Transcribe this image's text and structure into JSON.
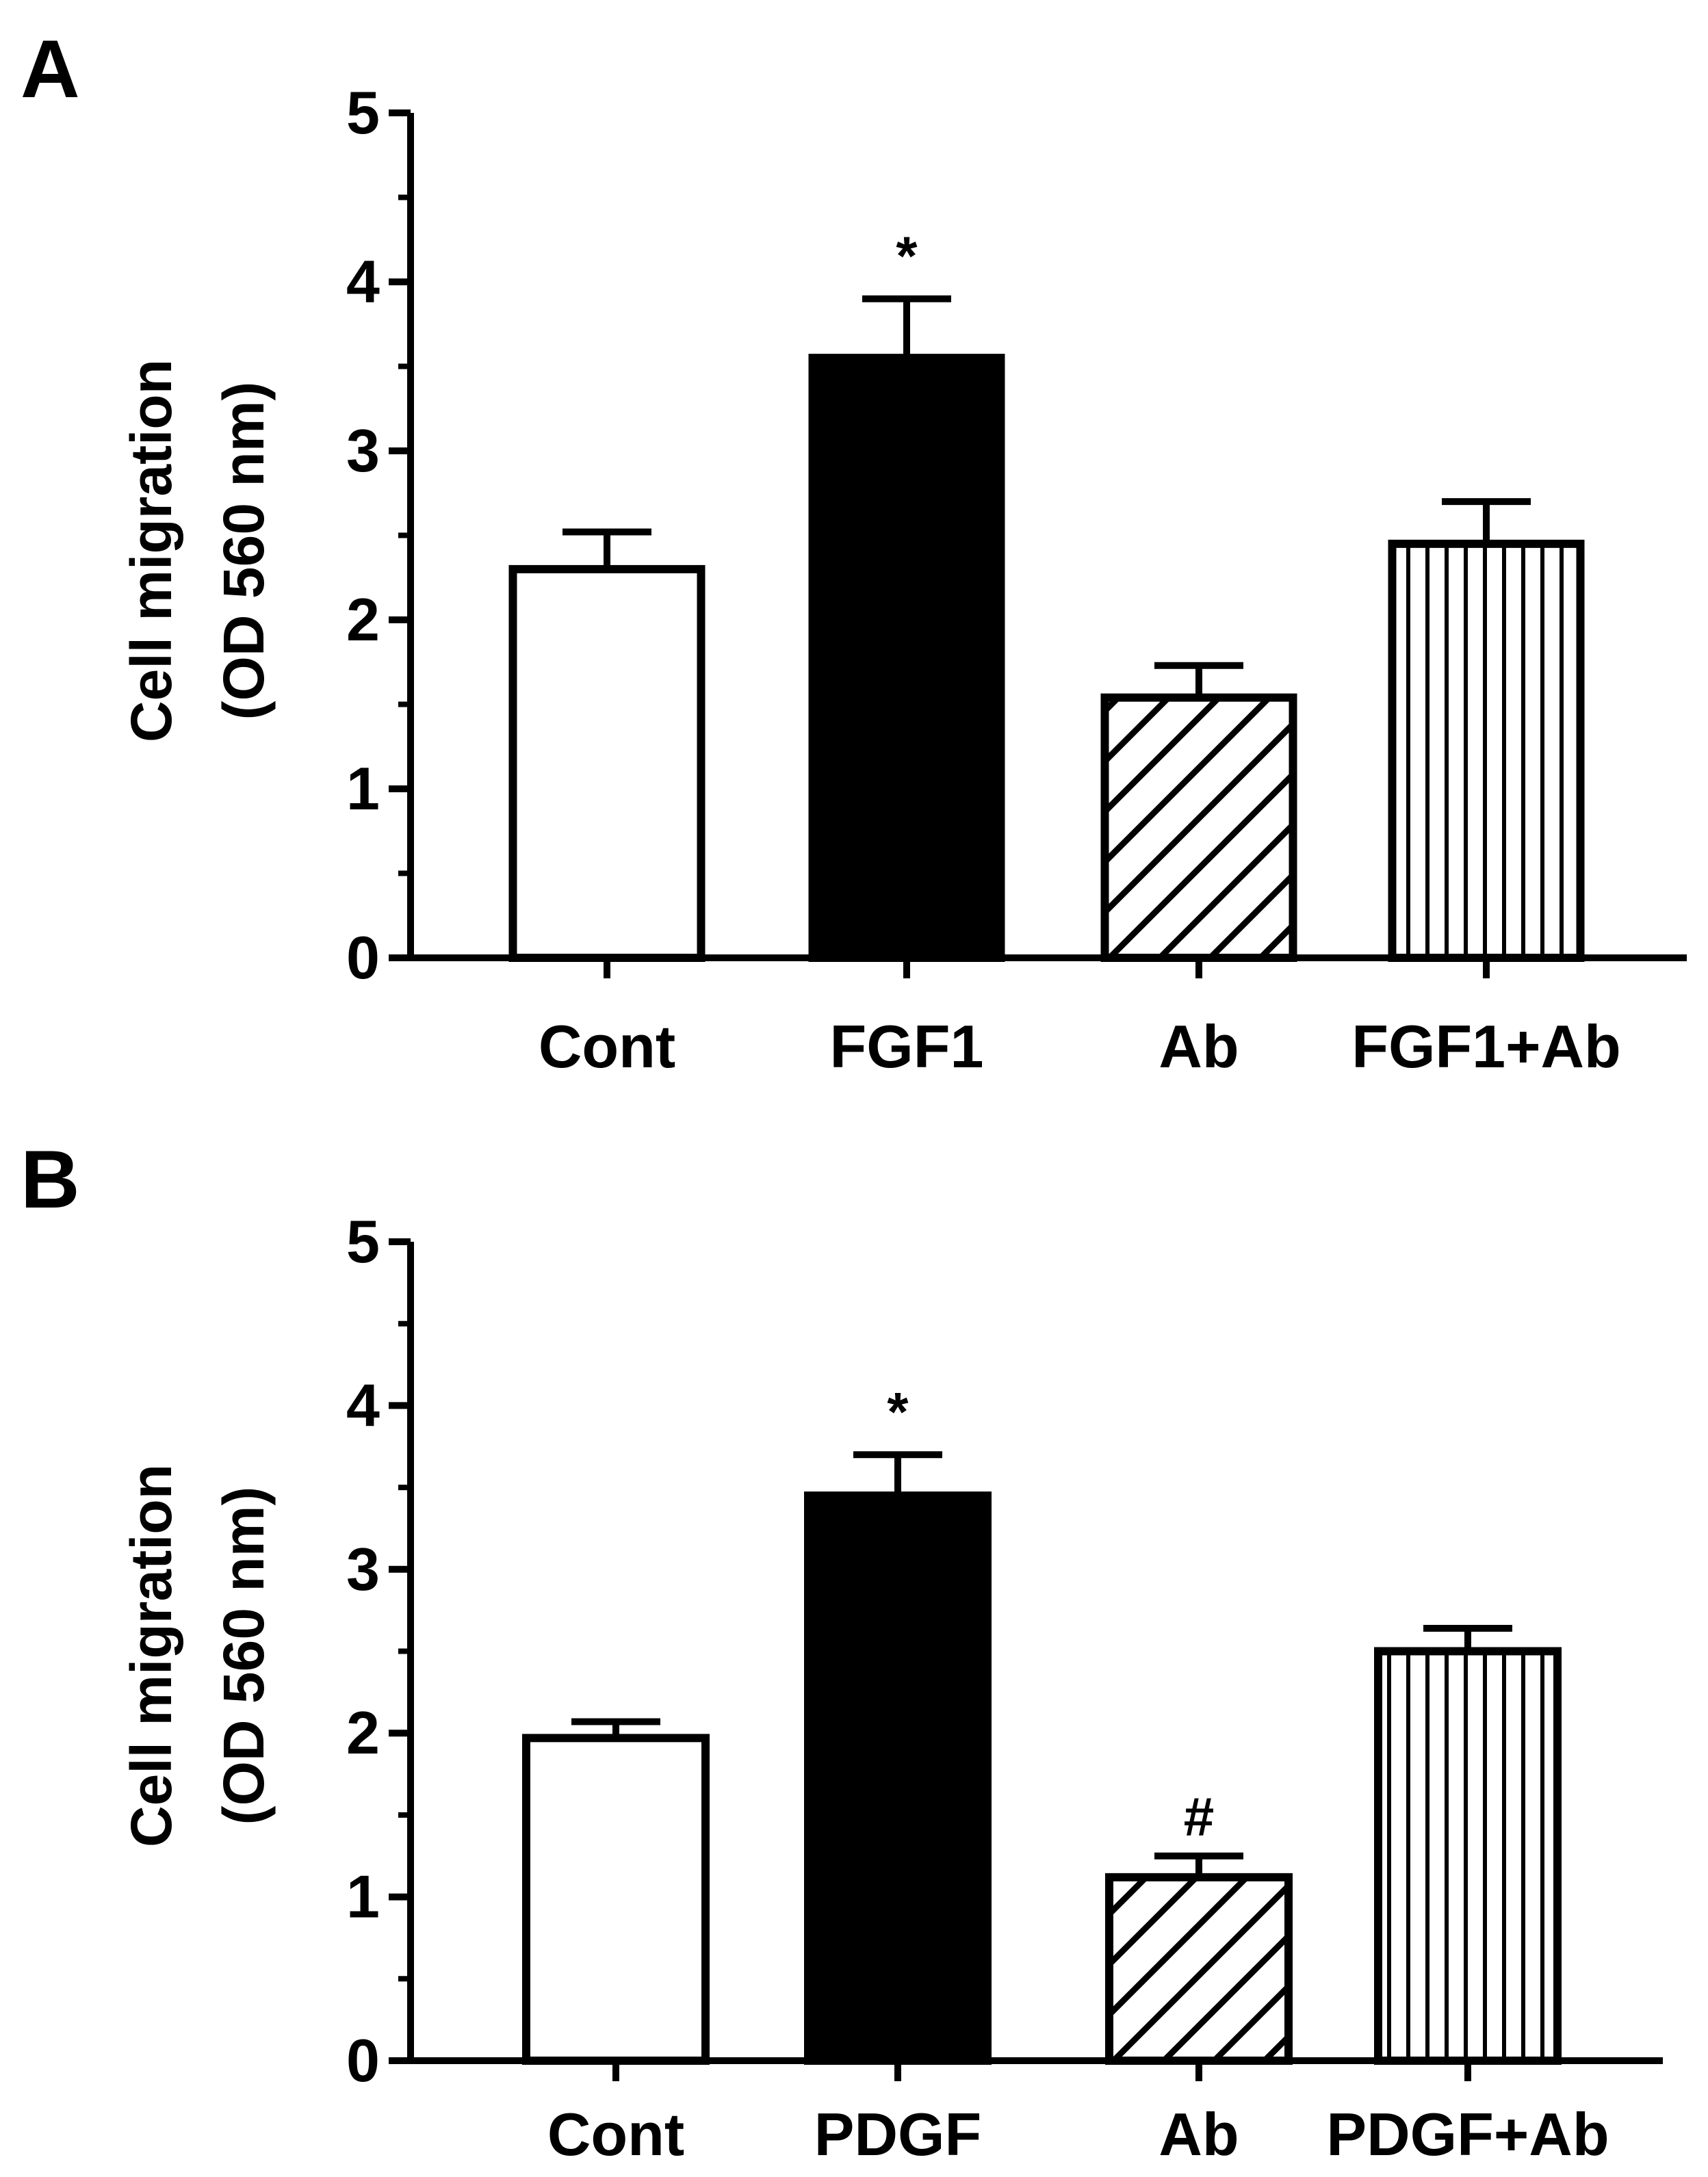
{
  "chart_data": [
    {
      "type": "bar",
      "panel": "A",
      "categories": [
        "Cont",
        "FGF1",
        "Ab",
        "FGF1+Ab"
      ],
      "values": [
        2.3,
        3.55,
        1.54,
        2.45
      ],
      "errors": [
        0.22,
        0.35,
        0.19,
        0.25
      ],
      "annotations": [
        "",
        "*",
        "",
        ""
      ],
      "fills": [
        "open",
        "solid",
        "diagonal",
        "vertical"
      ],
      "ylabel": "Cell migration",
      "ylabel2": "(OD 560 nm)",
      "ylim": [
        0,
        5
      ],
      "yticks": [
        "0",
        "1",
        "2",
        "3",
        "4",
        "5"
      ]
    },
    {
      "type": "bar",
      "panel": "B",
      "categories": [
        "Cont",
        "PDGF",
        "Ab",
        "PDGF+Ab"
      ],
      "values": [
        1.97,
        3.45,
        1.12,
        2.5
      ],
      "errors": [
        0.1,
        0.25,
        0.13,
        0.14
      ],
      "annotations": [
        "",
        "*",
        "#",
        ""
      ],
      "fills": [
        "open",
        "solid",
        "diagonal",
        "vertical"
      ],
      "ylabel": "Cell migration",
      "ylabel2": "(OD 560 nm)",
      "ylim": [
        0,
        5
      ],
      "yticks": [
        "0",
        "1",
        "2",
        "3",
        "4",
        "5"
      ]
    }
  ],
  "colors": {
    "ink": "#000000",
    "background": "#ffffff"
  }
}
